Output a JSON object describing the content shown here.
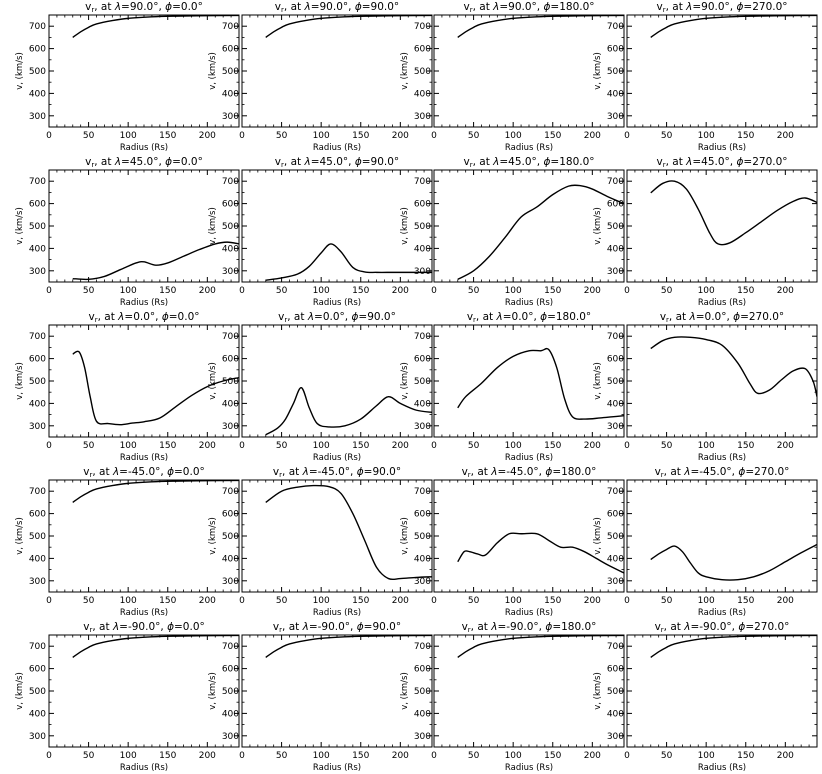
{
  "chart_data": [
    {
      "type": "line",
      "title": "v, at λ=90.0°, ϕ=0.0°",
      "title_parts": {
        "lat": "90.0",
        "lon": "0.0"
      },
      "xlabel": "Radius (Rs)",
      "ylabel": "v, (km/s)",
      "xlim": [
        0,
        240
      ],
      "ylim": [
        250,
        750
      ],
      "xticks": [
        0,
        50,
        100,
        150,
        200
      ],
      "yticks": [
        300,
        400,
        500,
        600,
        700
      ],
      "x": [
        30,
        40,
        50,
        60,
        80,
        100,
        130,
        160,
        200,
        240
      ],
      "y": [
        650,
        675,
        695,
        710,
        725,
        735,
        742,
        745,
        747,
        748
      ]
    },
    {
      "type": "line",
      "title": "v, at λ=90.0°, ϕ=90.0°",
      "title_parts": {
        "lat": "90.0",
        "lon": "90.0"
      },
      "xlabel": "Radius (Rs)",
      "ylabel": "v, (km/s)",
      "xlim": [
        0,
        240
      ],
      "ylim": [
        250,
        750
      ],
      "xticks": [
        0,
        50,
        100,
        150,
        200
      ],
      "yticks": [
        300,
        400,
        500,
        600,
        700
      ],
      "x": [
        30,
        40,
        50,
        60,
        80,
        100,
        130,
        160,
        200,
        240
      ],
      "y": [
        650,
        675,
        695,
        710,
        725,
        735,
        742,
        745,
        747,
        748
      ]
    },
    {
      "type": "line",
      "title": "v, at λ=90.0°, ϕ=180.0°",
      "title_parts": {
        "lat": "90.0",
        "lon": "180.0"
      },
      "xlabel": "Radius (Rs)",
      "ylabel": "v, (km/s)",
      "xlim": [
        0,
        240
      ],
      "ylim": [
        250,
        750
      ],
      "xticks": [
        0,
        50,
        100,
        150,
        200
      ],
      "yticks": [
        300,
        400,
        500,
        600,
        700
      ],
      "x": [
        30,
        40,
        50,
        60,
        80,
        100,
        130,
        160,
        200,
        240
      ],
      "y": [
        650,
        675,
        695,
        710,
        725,
        735,
        742,
        745,
        747,
        748
      ]
    },
    {
      "type": "line",
      "title": "v, at λ=90.0°, ϕ=270.0°",
      "title_parts": {
        "lat": "90.0",
        "lon": "270.0"
      },
      "xlabel": "Radius (Rs)",
      "ylabel": "v, (km/s)",
      "xlim": [
        0,
        240
      ],
      "ylim": [
        250,
        750
      ],
      "xticks": [
        0,
        50,
        100,
        150,
        200
      ],
      "yticks": [
        300,
        400,
        500,
        600,
        700
      ],
      "x": [
        30,
        40,
        50,
        60,
        80,
        100,
        130,
        160,
        200,
        240
      ],
      "y": [
        650,
        675,
        695,
        710,
        725,
        735,
        742,
        745,
        747,
        748
      ]
    },
    {
      "type": "line",
      "title": "v, at λ=45.0°, ϕ=0.0°",
      "title_parts": {
        "lat": "45.0",
        "lon": "0.0"
      },
      "xlabel": "Radius (Rs)",
      "ylabel": "v, (km/s)",
      "xlim": [
        0,
        240
      ],
      "ylim": [
        250,
        750
      ],
      "xticks": [
        0,
        50,
        100,
        150,
        200
      ],
      "yticks": [
        300,
        400,
        500,
        600,
        700
      ],
      "x": [
        30,
        50,
        70,
        90,
        110,
        120,
        135,
        150,
        170,
        190,
        210,
        225,
        240
      ],
      "y": [
        265,
        262,
        275,
        305,
        335,
        340,
        325,
        335,
        365,
        395,
        420,
        428,
        420
      ]
    },
    {
      "type": "line",
      "title": "v, at λ=45.0°, ϕ=90.0°",
      "title_parts": {
        "lat": "45.0",
        "lon": "90.0"
      },
      "xlabel": "Radius (Rs)",
      "ylabel": "v, (km/s)",
      "xlim": [
        0,
        240
      ],
      "ylim": [
        250,
        750
      ],
      "xticks": [
        0,
        50,
        100,
        150,
        200
      ],
      "yticks": [
        300,
        400,
        500,
        600,
        700
      ],
      "x": [
        30,
        50,
        70,
        85,
        100,
        112,
        125,
        140,
        155,
        170,
        190,
        210,
        240
      ],
      "y": [
        258,
        268,
        285,
        320,
        380,
        420,
        385,
        315,
        295,
        293,
        293,
        293,
        293
      ]
    },
    {
      "type": "line",
      "title": "v, at λ=45.0°, ϕ=180.0°",
      "title_parts": {
        "lat": "45.0",
        "lon": "180.0"
      },
      "xlabel": "Radius (Rs)",
      "ylabel": "v, (km/s)",
      "xlim": [
        0,
        240
      ],
      "ylim": [
        250,
        750
      ],
      "xticks": [
        0,
        50,
        100,
        150,
        200
      ],
      "yticks": [
        300,
        400,
        500,
        600,
        700
      ],
      "x": [
        30,
        50,
        70,
        90,
        110,
        130,
        150,
        170,
        185,
        200,
        220,
        240
      ],
      "y": [
        262,
        300,
        365,
        450,
        540,
        585,
        640,
        678,
        680,
        665,
        630,
        600
      ]
    },
    {
      "type": "line",
      "title": "v, at λ=45.0°, ϕ=270.0°",
      "title_parts": {
        "lat": "45.0",
        "lon": "270.0"
      },
      "xlabel": "Radius (Rs)",
      "ylabel": "v, (km/s)",
      "xlim": [
        0,
        240
      ],
      "ylim": [
        250,
        750
      ],
      "xticks": [
        0,
        50,
        100,
        150,
        200
      ],
      "yticks": [
        300,
        400,
        500,
        600,
        700
      ],
      "x": [
        30,
        45,
        60,
        75,
        90,
        105,
        115,
        130,
        150,
        170,
        190,
        210,
        225,
        240
      ],
      "y": [
        648,
        690,
        700,
        665,
        575,
        465,
        420,
        425,
        470,
        520,
        570,
        610,
        625,
        605
      ]
    },
    {
      "type": "line",
      "title": "v, at λ=0.0°, ϕ=0.0°",
      "title_parts": {
        "lat": "0.0",
        "lon": "0.0"
      },
      "xlabel": "Radius (Rs)",
      "ylabel": "v, (km/s)",
      "xlim": [
        0,
        240
      ],
      "ylim": [
        250,
        750
      ],
      "xticks": [
        0,
        50,
        100,
        150,
        200
      ],
      "yticks": [
        300,
        400,
        500,
        600,
        700
      ],
      "x": [
        30,
        38,
        45,
        52,
        60,
        75,
        90,
        105,
        120,
        140,
        160,
        180,
        200,
        220,
        240
      ],
      "y": [
        620,
        630,
        560,
        430,
        320,
        310,
        305,
        312,
        318,
        335,
        385,
        435,
        475,
        500,
        515
      ]
    },
    {
      "type": "line",
      "title": "v, at λ=0.0°, ϕ=90.0°",
      "title_parts": {
        "lat": "0.0",
        "lon": "90.0"
      },
      "xlabel": "Radius (Rs)",
      "ylabel": "v, (km/s)",
      "xlim": [
        0,
        240
      ],
      "ylim": [
        250,
        750
      ],
      "xticks": [
        0,
        50,
        100,
        150,
        200
      ],
      "yticks": [
        300,
        400,
        500,
        600,
        700
      ],
      "x": [
        30,
        45,
        55,
        65,
        75,
        85,
        95,
        110,
        130,
        150,
        170,
        185,
        200,
        220,
        240
      ],
      "y": [
        260,
        290,
        330,
        400,
        470,
        380,
        310,
        295,
        300,
        330,
        390,
        430,
        400,
        370,
        360
      ]
    },
    {
      "type": "line",
      "title": "v, at λ=0.0°, ϕ=180.0°",
      "title_parts": {
        "lat": "0.0",
        "lon": "180.0"
      },
      "xlabel": "Radius (Rs)",
      "ylabel": "v, (km/s)",
      "xlim": [
        0,
        240
      ],
      "ylim": [
        250,
        750
      ],
      "xticks": [
        0,
        50,
        100,
        150,
        200
      ],
      "yticks": [
        300,
        400,
        500,
        600,
        700
      ],
      "x": [
        30,
        40,
        60,
        80,
        100,
        120,
        135,
        145,
        155,
        165,
        175,
        190,
        210,
        225,
        240
      ],
      "y": [
        380,
        430,
        490,
        560,
        610,
        635,
        635,
        640,
        560,
        420,
        340,
        330,
        335,
        340,
        345
      ]
    },
    {
      "type": "line",
      "title": "v, at λ=0.0°, ϕ=270.0°",
      "title_parts": {
        "lat": "0.0",
        "lon": "270.0"
      },
      "xlabel": "Radius (Rs)",
      "ylabel": "v, (km/s)",
      "xlim": [
        0,
        240
      ],
      "ylim": [
        250,
        750
      ],
      "xticks": [
        0,
        50,
        100,
        150,
        200
      ],
      "yticks": [
        300,
        400,
        500,
        600,
        700
      ],
      "x": [
        30,
        45,
        60,
        80,
        100,
        120,
        140,
        155,
        165,
        180,
        195,
        210,
        225,
        235,
        240
      ],
      "y": [
        645,
        680,
        695,
        695,
        685,
        660,
        580,
        490,
        445,
        460,
        505,
        545,
        555,
        500,
        430
      ]
    },
    {
      "type": "line",
      "title": "v, at λ=-45.0°, ϕ=0.0°",
      "title_parts": {
        "lat": "-45.0",
        "lon": "0.0"
      },
      "xlabel": "Radius (Rs)",
      "ylabel": "v, (km/s)",
      "xlim": [
        0,
        240
      ],
      "ylim": [
        250,
        750
      ],
      "xticks": [
        0,
        50,
        100,
        150,
        200
      ],
      "yticks": [
        300,
        400,
        500,
        600,
        700
      ],
      "x": [
        30,
        40,
        50,
        60,
        80,
        100,
        130,
        160,
        200,
        240
      ],
      "y": [
        650,
        675,
        695,
        710,
        725,
        735,
        742,
        745,
        747,
        748
      ]
    },
    {
      "type": "line",
      "title": "v, at λ=-45.0°, ϕ=90.0°",
      "title_parts": {
        "lat": "-45.0",
        "lon": "90.0"
      },
      "xlabel": "Radius (Rs)",
      "ylabel": "v, (km/s)",
      "xlim": [
        0,
        240
      ],
      "ylim": [
        250,
        750
      ],
      "xticks": [
        0,
        50,
        100,
        150,
        200
      ],
      "yticks": [
        300,
        400,
        500,
        600,
        700
      ],
      "x": [
        30,
        50,
        70,
        90,
        110,
        125,
        140,
        155,
        170,
        185,
        200,
        220,
        240
      ],
      "y": [
        650,
        700,
        718,
        725,
        720,
        690,
        600,
        480,
        360,
        310,
        310,
        315,
        318
      ]
    },
    {
      "type": "line",
      "title": "v, at λ=-45.0°, ϕ=180.0°",
      "title_parts": {
        "lat": "-45.0",
        "lon": "180.0"
      },
      "xlabel": "Radius (Rs)",
      "ylabel": "v, (km/s)",
      "xlim": [
        0,
        240
      ],
      "ylim": [
        250,
        750
      ],
      "xticks": [
        0,
        50,
        100,
        150,
        200
      ],
      "yticks": [
        300,
        400,
        500,
        600,
        700
      ],
      "x": [
        30,
        38,
        45,
        55,
        65,
        80,
        95,
        110,
        130,
        145,
        160,
        175,
        190,
        205,
        220,
        240
      ],
      "y": [
        385,
        430,
        430,
        420,
        415,
        470,
        510,
        510,
        510,
        480,
        450,
        450,
        430,
        400,
        370,
        335
      ]
    },
    {
      "type": "line",
      "title": "v, at λ=-45.0°, ϕ=270.0°",
      "title_parts": {
        "lat": "-45.0",
        "lon": "270.0"
      },
      "xlabel": "Radius (Rs)",
      "ylabel": "v, (km/s)",
      "xlim": [
        0,
        240
      ],
      "ylim": [
        250,
        750
      ],
      "xticks": [
        0,
        50,
        100,
        150,
        200
      ],
      "yticks": [
        300,
        400,
        500,
        600,
        700
      ],
      "x": [
        30,
        40,
        50,
        60,
        70,
        80,
        90,
        100,
        120,
        140,
        160,
        180,
        200,
        220,
        240
      ],
      "y": [
        395,
        420,
        440,
        455,
        430,
        380,
        335,
        318,
        305,
        305,
        318,
        345,
        385,
        425,
        462
      ]
    },
    {
      "type": "line",
      "title": "v, at λ=-90.0°, ϕ=0.0°",
      "title_parts": {
        "lat": "-90.0",
        "lon": "0.0"
      },
      "xlabel": "Radius (Rs)",
      "ylabel": "v, (km/s)",
      "xlim": [
        0,
        240
      ],
      "ylim": [
        250,
        750
      ],
      "xticks": [
        0,
        50,
        100,
        150,
        200
      ],
      "yticks": [
        300,
        400,
        500,
        600,
        700
      ],
      "x": [
        30,
        40,
        50,
        60,
        80,
        100,
        130,
        160,
        200,
        240
      ],
      "y": [
        650,
        675,
        695,
        710,
        725,
        735,
        742,
        745,
        747,
        748
      ]
    },
    {
      "type": "line",
      "title": "v, at λ=-90.0°, ϕ=90.0°",
      "title_parts": {
        "lat": "-90.0",
        "lon": "90.0"
      },
      "xlabel": "Radius (Rs)",
      "ylabel": "v, (km/s)",
      "xlim": [
        0,
        240
      ],
      "ylim": [
        250,
        750
      ],
      "xticks": [
        0,
        50,
        100,
        150,
        200
      ],
      "yticks": [
        300,
        400,
        500,
        600,
        700
      ],
      "x": [
        30,
        40,
        50,
        60,
        80,
        100,
        130,
        160,
        200,
        240
      ],
      "y": [
        650,
        675,
        695,
        710,
        725,
        735,
        742,
        745,
        747,
        748
      ]
    },
    {
      "type": "line",
      "title": "v, at λ=-90.0°, ϕ=180.0°",
      "title_parts": {
        "lat": "-90.0",
        "lon": "180.0"
      },
      "xlabel": "Radius (Rs)",
      "ylabel": "v, (km/s)",
      "xlim": [
        0,
        240
      ],
      "ylim": [
        250,
        750
      ],
      "xticks": [
        0,
        50,
        100,
        150,
        200
      ],
      "yticks": [
        300,
        400,
        500,
        600,
        700
      ],
      "x": [
        30,
        40,
        50,
        60,
        80,
        100,
        130,
        160,
        200,
        240
      ],
      "y": [
        650,
        675,
        695,
        710,
        725,
        735,
        742,
        745,
        747,
        748
      ]
    },
    {
      "type": "line",
      "title": "v, at λ=-90.0°, ϕ=270.0°",
      "title_parts": {
        "lat": "-90.0",
        "lon": "270.0"
      },
      "xlabel": "Radius (Rs)",
      "ylabel": "v, (km/s)",
      "xlim": [
        0,
        240
      ],
      "ylim": [
        250,
        750
      ],
      "xticks": [
        0,
        50,
        100,
        150,
        200
      ],
      "yticks": [
        300,
        400,
        500,
        600,
        700
      ],
      "x": [
        30,
        40,
        50,
        60,
        80,
        100,
        130,
        160,
        200,
        240
      ],
      "y": [
        650,
        675,
        695,
        710,
        725,
        735,
        742,
        745,
        747,
        748
      ]
    }
  ]
}
